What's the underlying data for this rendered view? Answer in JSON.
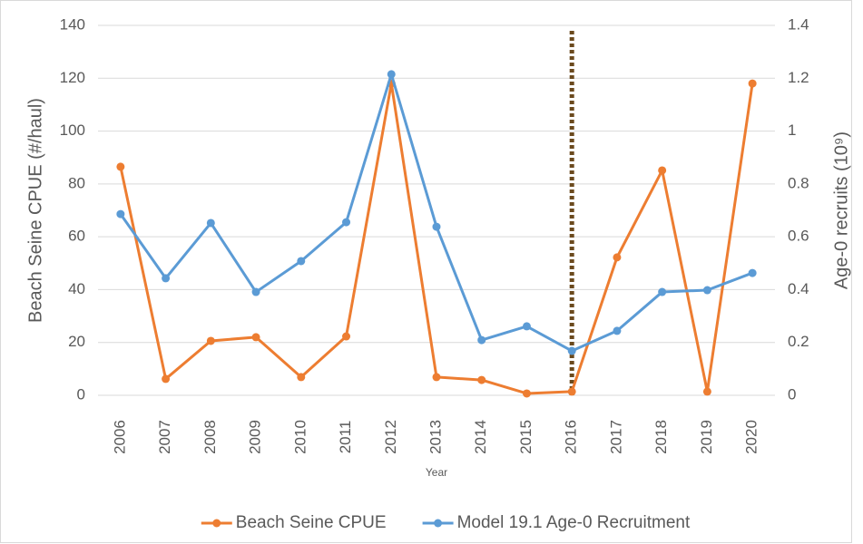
{
  "chart_data": {
    "type": "line",
    "x_label": "Year",
    "y_label": "Beach Seine CPUE (#/haul)",
    "y2_label": "Age-0 recruits (10⁹)",
    "categories": [
      "2006",
      "2007",
      "2008",
      "2009",
      "2010",
      "2011",
      "2012",
      "2013",
      "2014",
      "2015",
      "2016",
      "2017",
      "2018",
      "2019",
      "2020"
    ],
    "series": [
      {
        "name": "Beach Seine CPUE",
        "color": "#ed7d31",
        "axis": "y",
        "values": [
          86.5,
          6.2,
          20.6,
          22,
          6.9,
          22.3,
          118,
          6.9,
          5.8,
          0.7,
          1.4,
          52.2,
          85.1,
          1.4,
          118
        ]
      },
      {
        "name": "Model 19.1 Age-0 Recruitment",
        "color": "#5b9bd5",
        "axis": "y2",
        "values": [
          0.686,
          0.443,
          0.652,
          0.391,
          0.508,
          0.655,
          1.215,
          0.638,
          0.209,
          0.261,
          0.168,
          0.244,
          0.391,
          0.398,
          0.463
        ]
      }
    ],
    "ylim": [
      0,
      140
    ],
    "yticks": [
      0,
      20,
      40,
      60,
      80,
      100,
      120,
      140
    ],
    "y2lim": [
      0,
      1.4
    ],
    "y2ticks": [
      0,
      0.2,
      0.4,
      0.6,
      0.8,
      1,
      1.2,
      1.4
    ],
    "grid": true,
    "legend": "bottom",
    "reference_line": {
      "x": "2016",
      "color": "#6b4a1e",
      "style": "dotted"
    }
  }
}
